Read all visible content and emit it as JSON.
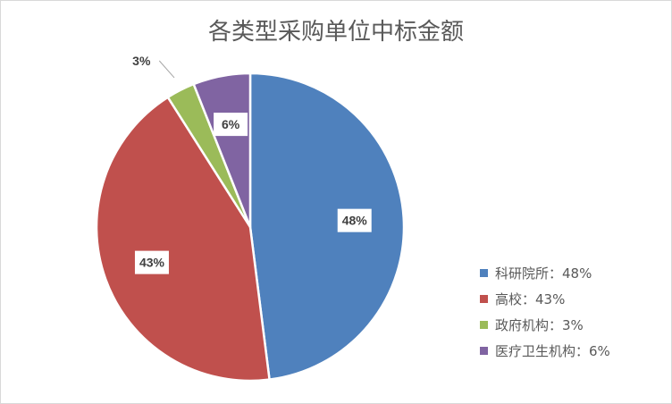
{
  "chart_data": {
    "type": "pie",
    "title": "各类型采购单位中标金额",
    "start_angle": "top, clockwise",
    "slices": [
      {
        "label": "科研院所",
        "value": 48,
        "display": "48%",
        "legend": "科研院所：48%",
        "color": "#4f81bd"
      },
      {
        "label": "高校",
        "value": 43,
        "display": "43%",
        "legend": "高校：43%",
        "color": "#c0504d"
      },
      {
        "label": "政府机构",
        "value": 3,
        "display": "3%",
        "legend": "政府机构：3%",
        "color": "#9bbb59"
      },
      {
        "label": "医疗卫生机构",
        "value": 6,
        "display": "6%",
        "legend": "医疗卫生机构：6%",
        "color": "#8064a2"
      }
    ],
    "legend_position": "right-bottom"
  }
}
